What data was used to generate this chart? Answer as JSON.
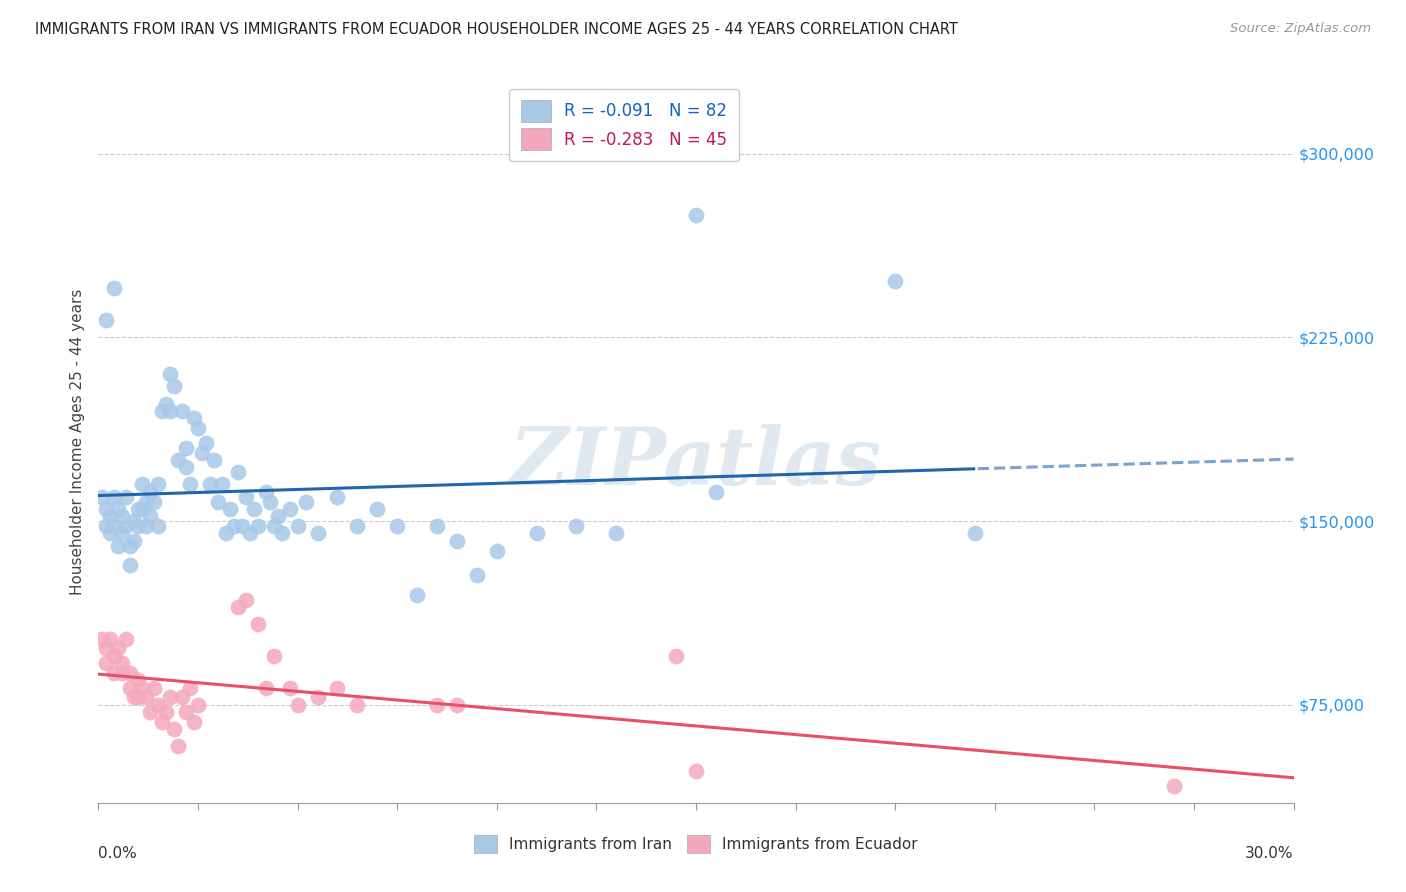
{
  "title": "IMMIGRANTS FROM IRAN VS IMMIGRANTS FROM ECUADOR HOUSEHOLDER INCOME AGES 25 - 44 YEARS CORRELATION CHART",
  "source": "Source: ZipAtlas.com",
  "ylabel": "Householder Income Ages 25 - 44 years",
  "ytick_labels": [
    "$75,000",
    "$150,000",
    "$225,000",
    "$300,000"
  ],
  "ytick_values": [
    75000,
    150000,
    225000,
    300000
  ],
  "ylim": [
    35000,
    330000
  ],
  "xlim": [
    0.0,
    0.3
  ],
  "iran_R": -0.091,
  "iran_N": 82,
  "ecuador_R": -0.283,
  "ecuador_N": 45,
  "iran_color": "#a8c8e8",
  "ecuador_color": "#f4a8be",
  "iran_line_color": "#2166ac",
  "ecuador_line_color": "#e8506a",
  "iran_scatter": [
    [
      0.001,
      160000
    ],
    [
      0.002,
      155000
    ],
    [
      0.002,
      148000
    ],
    [
      0.003,
      152000
    ],
    [
      0.003,
      145000
    ],
    [
      0.004,
      160000
    ],
    [
      0.004,
      148000
    ],
    [
      0.005,
      155000
    ],
    [
      0.005,
      140000
    ],
    [
      0.006,
      152000
    ],
    [
      0.006,
      145000
    ],
    [
      0.007,
      160000
    ],
    [
      0.007,
      148000
    ],
    [
      0.008,
      140000
    ],
    [
      0.008,
      132000
    ],
    [
      0.009,
      150000
    ],
    [
      0.009,
      142000
    ],
    [
      0.01,
      155000
    ],
    [
      0.01,
      148000
    ],
    [
      0.011,
      165000
    ],
    [
      0.011,
      155000
    ],
    [
      0.012,
      158000
    ],
    [
      0.012,
      148000
    ],
    [
      0.013,
      162000
    ],
    [
      0.013,
      152000
    ],
    [
      0.014,
      158000
    ],
    [
      0.015,
      148000
    ],
    [
      0.015,
      165000
    ],
    [
      0.016,
      195000
    ],
    [
      0.017,
      198000
    ],
    [
      0.018,
      195000
    ],
    [
      0.018,
      210000
    ],
    [
      0.019,
      205000
    ],
    [
      0.02,
      175000
    ],
    [
      0.021,
      195000
    ],
    [
      0.022,
      180000
    ],
    [
      0.022,
      172000
    ],
    [
      0.023,
      165000
    ],
    [
      0.024,
      192000
    ],
    [
      0.025,
      188000
    ],
    [
      0.026,
      178000
    ],
    [
      0.027,
      182000
    ],
    [
      0.028,
      165000
    ],
    [
      0.029,
      175000
    ],
    [
      0.03,
      158000
    ],
    [
      0.031,
      165000
    ],
    [
      0.032,
      145000
    ],
    [
      0.033,
      155000
    ],
    [
      0.034,
      148000
    ],
    [
      0.035,
      170000
    ],
    [
      0.036,
      148000
    ],
    [
      0.037,
      160000
    ],
    [
      0.038,
      145000
    ],
    [
      0.039,
      155000
    ],
    [
      0.04,
      148000
    ],
    [
      0.042,
      162000
    ],
    [
      0.043,
      158000
    ],
    [
      0.044,
      148000
    ],
    [
      0.045,
      152000
    ],
    [
      0.046,
      145000
    ],
    [
      0.048,
      155000
    ],
    [
      0.05,
      148000
    ],
    [
      0.052,
      158000
    ],
    [
      0.055,
      145000
    ],
    [
      0.06,
      160000
    ],
    [
      0.065,
      148000
    ],
    [
      0.07,
      155000
    ],
    [
      0.075,
      148000
    ],
    [
      0.08,
      120000
    ],
    [
      0.085,
      148000
    ],
    [
      0.09,
      142000
    ],
    [
      0.095,
      128000
    ],
    [
      0.1,
      138000
    ],
    [
      0.11,
      145000
    ],
    [
      0.12,
      148000
    ],
    [
      0.13,
      145000
    ],
    [
      0.15,
      275000
    ],
    [
      0.155,
      162000
    ],
    [
      0.2,
      248000
    ],
    [
      0.22,
      145000
    ],
    [
      0.002,
      232000
    ],
    [
      0.004,
      245000
    ]
  ],
  "ecuador_scatter": [
    [
      0.001,
      102000
    ],
    [
      0.002,
      98000
    ],
    [
      0.002,
      92000
    ],
    [
      0.003,
      102000
    ],
    [
      0.004,
      95000
    ],
    [
      0.004,
      88000
    ],
    [
      0.005,
      98000
    ],
    [
      0.006,
      92000
    ],
    [
      0.006,
      88000
    ],
    [
      0.007,
      102000
    ],
    [
      0.008,
      88000
    ],
    [
      0.008,
      82000
    ],
    [
      0.009,
      78000
    ],
    [
      0.01,
      85000
    ],
    [
      0.01,
      78000
    ],
    [
      0.011,
      82000
    ],
    [
      0.012,
      78000
    ],
    [
      0.013,
      72000
    ],
    [
      0.014,
      82000
    ],
    [
      0.015,
      75000
    ],
    [
      0.016,
      68000
    ],
    [
      0.017,
      72000
    ],
    [
      0.018,
      78000
    ],
    [
      0.019,
      65000
    ],
    [
      0.02,
      58000
    ],
    [
      0.021,
      78000
    ],
    [
      0.022,
      72000
    ],
    [
      0.023,
      82000
    ],
    [
      0.024,
      68000
    ],
    [
      0.025,
      75000
    ],
    [
      0.035,
      115000
    ],
    [
      0.037,
      118000
    ],
    [
      0.04,
      108000
    ],
    [
      0.042,
      82000
    ],
    [
      0.044,
      95000
    ],
    [
      0.048,
      82000
    ],
    [
      0.05,
      75000
    ],
    [
      0.055,
      78000
    ],
    [
      0.06,
      82000
    ],
    [
      0.065,
      75000
    ],
    [
      0.085,
      75000
    ],
    [
      0.09,
      75000
    ],
    [
      0.15,
      48000
    ],
    [
      0.27,
      42000
    ],
    [
      0.145,
      95000
    ]
  ],
  "watermark": "ZIPatlas",
  "legend_iran_label": "R = -0.091   N = 82",
  "legend_ecuador_label": "R = -0.283   N = 45",
  "legend_box_iran_color": "#a8c8e8",
  "legend_box_ecuador_color": "#f4a8be",
  "bottom_legend_iran": "Immigrants from Iran",
  "bottom_legend_ecuador": "Immigrants from Ecuador"
}
